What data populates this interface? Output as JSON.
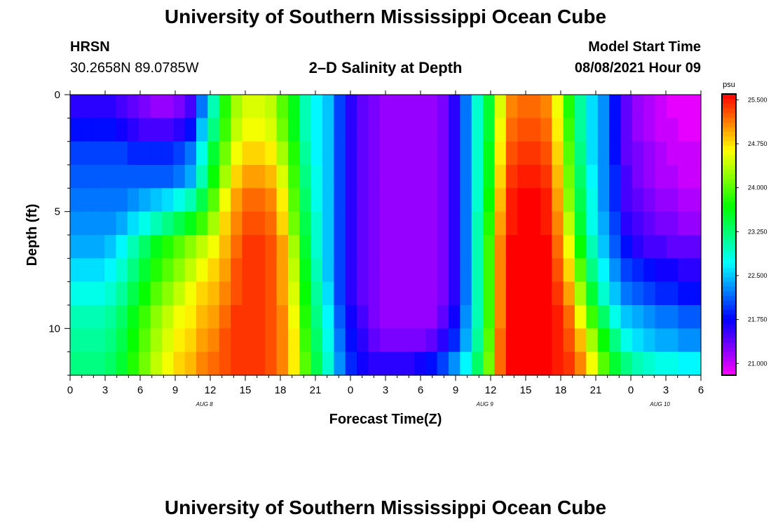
{
  "header": {
    "title": "University of Southern Mississippi Ocean Cube",
    "station_name": "HRSN",
    "station_coords": "30.2658N  89.0785W",
    "plot_title": "2–D Salinity at Depth",
    "model_start_label": "Model Start Time",
    "model_start_value": "08/08/2021 Hour 09"
  },
  "footer": {
    "title": "University of Southern Mississippi Ocean Cube"
  },
  "chart_data": {
    "type": "heatmap",
    "title": "2–D Salinity at Depth",
    "xlabel": "Forecast Time(Z)",
    "ylabel": "Depth (ft)",
    "x_tick_labels": [
      "0",
      "3",
      "6",
      "9",
      "12",
      "15",
      "18",
      "21",
      "0",
      "3",
      "6",
      "9",
      "12",
      "15",
      "18",
      "21",
      "0",
      "3",
      "6"
    ],
    "x_tick_hours": [
      0,
      3,
      6,
      9,
      12,
      15,
      18,
      21,
      24,
      27,
      30,
      33,
      36,
      39,
      42,
      45,
      48,
      51,
      54
    ],
    "x_range_hours": [
      0,
      54
    ],
    "date_labels": [
      {
        "text": "AUG 8",
        "hour": 11.5
      },
      {
        "text": "AUG 9",
        "hour": 35.5
      },
      {
        "text": "AUG 10",
        "hour": 50.5
      }
    ],
    "y_tick_labels": [
      "0",
      "5",
      "10"
    ],
    "y_ticks_ft": [
      0,
      5,
      10
    ],
    "y_range_ft": [
      0,
      12
    ],
    "depth_levels_ft": [
      0,
      1,
      2,
      3,
      4,
      5,
      6,
      7,
      8,
      9,
      10,
      11
    ],
    "colorbar": {
      "unit": "psu",
      "min": 20.8,
      "max": 25.6,
      "tick_labels": [
        "25.500",
        "24.750",
        "24.000",
        "23.250",
        "22.500",
        "21.750",
        "21.000"
      ],
      "ticks": [
        25.5,
        24.75,
        24.0,
        23.25,
        22.5,
        21.75,
        21.0
      ]
    },
    "salinity_psu_by_depth": [
      [
        21.6,
        21.6,
        21.6,
        21.6,
        21.5,
        21.4,
        21.3,
        21.2,
        21.2,
        21.3,
        21.5,
        22.2,
        23.0,
        23.8,
        24.3,
        24.5,
        24.5,
        24.4,
        24.0,
        23.6,
        23.0,
        22.7,
        22.5,
        22.0,
        21.6,
        21.4,
        21.3,
        21.2,
        21.2,
        21.2,
        21.2,
        21.2,
        21.3,
        21.6,
        22.2,
        22.9,
        23.5,
        24.5,
        25.1,
        25.2,
        25.2,
        25.1,
        24.6,
        23.8,
        23.1,
        22.6,
        22.3,
        21.8,
        21.4,
        21.2,
        21.1,
        21.0,
        20.9,
        20.9,
        20.9
      ],
      [
        21.8,
        21.8,
        21.8,
        21.8,
        21.7,
        21.6,
        21.5,
        21.5,
        21.5,
        21.6,
        21.8,
        22.5,
        23.2,
        23.9,
        24.4,
        24.6,
        24.6,
        24.5,
        24.1,
        23.6,
        23.0,
        22.7,
        22.5,
        22.0,
        21.6,
        21.4,
        21.3,
        21.2,
        21.2,
        21.2,
        21.2,
        21.2,
        21.3,
        21.6,
        22.2,
        22.9,
        23.5,
        24.6,
        25.2,
        25.3,
        25.3,
        25.2,
        24.7,
        23.9,
        23.1,
        22.6,
        22.3,
        21.8,
        21.4,
        21.2,
        21.1,
        21.0,
        21.0,
        20.9,
        20.9
      ],
      [
        22.0,
        22.0,
        22.0,
        22.0,
        22.0,
        21.9,
        21.9,
        21.9,
        21.9,
        22.0,
        22.2,
        22.8,
        23.5,
        24.1,
        24.6,
        24.8,
        24.8,
        24.7,
        24.3,
        23.8,
        23.1,
        22.7,
        22.5,
        22.0,
        21.6,
        21.4,
        21.3,
        21.2,
        21.2,
        21.2,
        21.2,
        21.2,
        21.3,
        21.6,
        22.2,
        22.9,
        23.6,
        24.7,
        25.3,
        25.4,
        25.4,
        25.3,
        24.8,
        24.0,
        23.2,
        22.6,
        22.3,
        21.8,
        21.4,
        21.3,
        21.2,
        21.1,
        21.0,
        21.0,
        21.0
      ],
      [
        22.1,
        22.1,
        22.1,
        22.1,
        22.1,
        22.1,
        22.1,
        22.1,
        22.1,
        22.2,
        22.4,
        23.0,
        23.7,
        24.3,
        24.8,
        25.0,
        25.0,
        24.9,
        24.5,
        23.9,
        23.2,
        22.8,
        22.5,
        22.0,
        21.6,
        21.4,
        21.3,
        21.2,
        21.2,
        21.2,
        21.2,
        21.2,
        21.3,
        21.6,
        22.2,
        22.9,
        23.6,
        24.8,
        25.4,
        25.5,
        25.5,
        25.4,
        24.9,
        24.1,
        23.3,
        22.7,
        22.3,
        21.9,
        21.5,
        21.3,
        21.2,
        21.1,
        21.1,
        21.0,
        21.0
      ],
      [
        22.2,
        22.2,
        22.2,
        22.2,
        22.2,
        22.3,
        22.4,
        22.5,
        22.6,
        22.8,
        23.0,
        23.4,
        24.0,
        24.6,
        25.0,
        25.2,
        25.2,
        25.1,
        24.7,
        24.0,
        23.3,
        22.8,
        22.5,
        22.0,
        21.6,
        21.4,
        21.3,
        21.2,
        21.2,
        21.2,
        21.2,
        21.2,
        21.3,
        21.6,
        22.2,
        22.9,
        23.7,
        24.9,
        25.5,
        25.6,
        25.6,
        25.5,
        25.0,
        24.2,
        23.4,
        22.8,
        22.3,
        21.9,
        21.5,
        21.4,
        21.3,
        21.2,
        21.2,
        21.1,
        21.1
      ],
      [
        22.3,
        22.3,
        22.3,
        22.3,
        22.4,
        22.6,
        22.8,
        23.0,
        23.2,
        23.4,
        23.6,
        23.9,
        24.3,
        24.8,
        25.1,
        25.3,
        25.3,
        25.2,
        24.8,
        24.1,
        23.4,
        22.9,
        22.5,
        22.0,
        21.6,
        21.4,
        21.3,
        21.2,
        21.2,
        21.2,
        21.2,
        21.2,
        21.3,
        21.6,
        22.2,
        23.0,
        23.8,
        25.0,
        25.5,
        25.6,
        25.6,
        25.5,
        25.1,
        24.4,
        23.5,
        22.8,
        22.4,
        22.0,
        21.6,
        21.5,
        21.4,
        21.3,
        21.3,
        21.2,
        21.2
      ],
      [
        22.4,
        22.4,
        22.4,
        22.5,
        22.7,
        23.0,
        23.3,
        23.6,
        23.8,
        24.0,
        24.2,
        24.4,
        24.6,
        24.9,
        25.2,
        25.4,
        25.4,
        25.3,
        25.0,
        24.3,
        23.5,
        22.9,
        22.5,
        22.0,
        21.6,
        21.4,
        21.3,
        21.2,
        21.2,
        21.2,
        21.2,
        21.2,
        21.3,
        21.6,
        22.2,
        23.0,
        23.9,
        25.1,
        25.6,
        25.6,
        25.6,
        25.6,
        25.2,
        24.6,
        23.7,
        23.0,
        22.5,
        22.1,
        21.8,
        21.6,
        21.5,
        21.5,
        21.4,
        21.4,
        21.4
      ],
      [
        22.6,
        22.6,
        22.6,
        22.7,
        22.9,
        23.2,
        23.5,
        23.8,
        24.0,
        24.2,
        24.4,
        24.6,
        24.8,
        25.0,
        25.3,
        25.4,
        25.4,
        25.3,
        25.0,
        24.4,
        23.6,
        23.0,
        22.5,
        22.0,
        21.6,
        21.4,
        21.3,
        21.2,
        21.2,
        21.2,
        21.2,
        21.2,
        21.3,
        21.6,
        22.2,
        23.0,
        23.9,
        25.1,
        25.6,
        25.6,
        25.6,
        25.6,
        25.3,
        24.8,
        24.0,
        23.2,
        22.7,
        22.3,
        22.0,
        21.9,
        21.8,
        21.7,
        21.7,
        21.6,
        21.6
      ],
      [
        22.8,
        22.8,
        22.8,
        22.9,
        23.1,
        23.4,
        23.7,
        24.0,
        24.2,
        24.4,
        24.6,
        24.8,
        24.9,
        25.1,
        25.3,
        25.4,
        25.4,
        25.3,
        25.0,
        24.5,
        23.7,
        23.1,
        22.6,
        22.0,
        21.6,
        21.4,
        21.3,
        21.2,
        21.2,
        21.2,
        21.2,
        21.2,
        21.3,
        21.6,
        22.2,
        23.0,
        23.9,
        25.1,
        25.6,
        25.6,
        25.6,
        25.6,
        25.4,
        25.0,
        24.3,
        23.5,
        22.9,
        22.5,
        22.2,
        22.1,
        22.0,
        21.9,
        21.9,
        21.8,
        21.8
      ],
      [
        23.0,
        23.0,
        23.0,
        23.1,
        23.3,
        23.6,
        23.9,
        24.2,
        24.4,
        24.6,
        24.7,
        24.9,
        25.0,
        25.2,
        25.4,
        25.4,
        25.4,
        25.3,
        25.1,
        24.6,
        23.8,
        23.2,
        22.7,
        22.1,
        21.7,
        21.5,
        21.3,
        21.2,
        21.2,
        21.2,
        21.2,
        21.2,
        21.4,
        21.7,
        22.3,
        23.0,
        23.9,
        25.1,
        25.6,
        25.6,
        25.6,
        25.6,
        25.5,
        25.2,
        24.6,
        23.9,
        23.3,
        22.8,
        22.5,
        22.4,
        22.3,
        22.2,
        22.2,
        22.1,
        22.1
      ],
      [
        23.1,
        23.1,
        23.1,
        23.2,
        23.4,
        23.7,
        24.0,
        24.3,
        24.5,
        24.7,
        24.8,
        25.0,
        25.1,
        25.3,
        25.4,
        25.4,
        25.4,
        25.3,
        25.1,
        24.7,
        23.9,
        23.3,
        22.8,
        22.2,
        21.8,
        21.6,
        21.4,
        21.3,
        21.3,
        21.3,
        21.3,
        21.4,
        21.6,
        21.9,
        22.4,
        23.1,
        24.0,
        25.2,
        25.6,
        25.6,
        25.6,
        25.6,
        25.5,
        25.3,
        24.9,
        24.3,
        23.7,
        23.2,
        22.8,
        22.6,
        22.5,
        22.4,
        22.4,
        22.3,
        22.3
      ],
      [
        23.2,
        23.2,
        23.2,
        23.3,
        23.5,
        23.8,
        24.1,
        24.4,
        24.6,
        24.8,
        24.9,
        25.1,
        25.2,
        25.3,
        25.4,
        25.4,
        25.4,
        25.3,
        25.1,
        24.7,
        24.0,
        23.4,
        22.9,
        22.3,
        21.9,
        21.7,
        21.6,
        21.6,
        21.6,
        21.6,
        21.7,
        21.8,
        22.0,
        22.3,
        22.7,
        23.3,
        24.1,
        25.2,
        25.6,
        25.6,
        25.6,
        25.6,
        25.5,
        25.4,
        25.1,
        24.6,
        24.0,
        23.5,
        23.2,
        23.0,
        22.9,
        22.8,
        22.8,
        22.7,
        22.7
      ]
    ]
  }
}
